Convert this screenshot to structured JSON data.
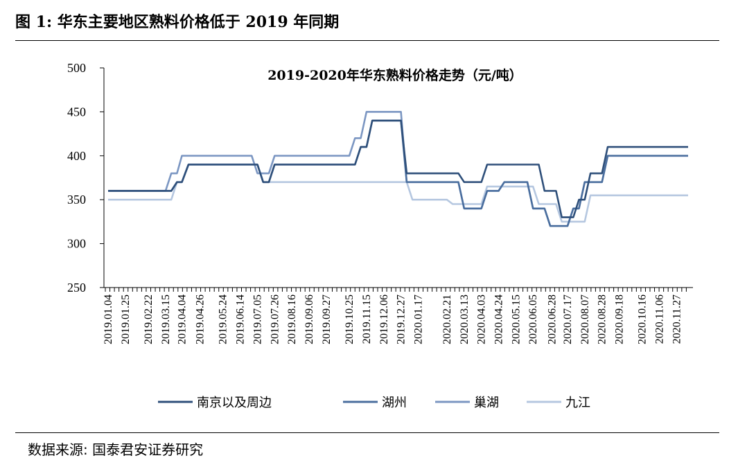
{
  "figure": {
    "title": "图 1: 华东主要地区熟料价格低于 2019 年同期",
    "source": "数据来源: 国泰君安证券研究"
  },
  "chart_data": {
    "type": "line",
    "title": "2019-2020年华东熟料价格走势（元/吨）",
    "xlabel": "",
    "ylabel": "",
    "ylim": [
      250,
      500
    ],
    "yticks": [
      250,
      300,
      350,
      400,
      450,
      500
    ],
    "grid": false,
    "legend_position": "bottom",
    "x_tick_labels": [
      "2019.01.04",
      "2019.01.25",
      "2019.02.22",
      "2019.03.15",
      "2019.04.04",
      "2019.04.26",
      "2019.05.24",
      "2019.06.14",
      "2019.07.05",
      "2019.07.26",
      "2019.08.16",
      "2019.09.06",
      "2019.09.27",
      "2019.10.25",
      "2019.11.15",
      "2019.12.06",
      "2019.12.27",
      "2020.01.17",
      "2020.02.21",
      "2020.03.13",
      "2020.04.03",
      "2020.04.24",
      "2020.05.15",
      "2020.06.05",
      "2020.06.28",
      "2020.07.17",
      "2020.08.07",
      "2020.08.28",
      "2020.09.18",
      "2020.10.16",
      "2020.11.06",
      "2020.11.27"
    ],
    "x_range": [
      "2019.01.04",
      "2020.12.11"
    ],
    "series": [
      {
        "name": "南京以及周边",
        "color": "#2e4f7a",
        "points": [
          [
            "2019.01.04",
            360
          ],
          [
            "2019.03.22",
            360
          ],
          [
            "2019.03.29",
            370
          ],
          [
            "2019.04.04",
            370
          ],
          [
            "2019.04.12",
            390
          ],
          [
            "2019.07.05",
            390
          ],
          [
            "2019.07.12",
            370
          ],
          [
            "2019.07.19",
            370
          ],
          [
            "2019.07.26",
            390
          ],
          [
            "2019.11.01",
            390
          ],
          [
            "2019.11.08",
            410
          ],
          [
            "2019.11.15",
            410
          ],
          [
            "2019.11.22",
            440
          ],
          [
            "2019.12.27",
            440
          ],
          [
            "2020.01.03",
            380
          ],
          [
            "2020.03.06",
            380
          ],
          [
            "2020.03.13",
            370
          ],
          [
            "2020.04.03",
            370
          ],
          [
            "2020.04.10",
            390
          ],
          [
            "2020.06.12",
            390
          ],
          [
            "2020.06.19",
            360
          ],
          [
            "2020.07.03",
            360
          ],
          [
            "2020.07.10",
            330
          ],
          [
            "2020.07.24",
            330
          ],
          [
            "2020.07.31",
            350
          ],
          [
            "2020.08.07",
            350
          ],
          [
            "2020.08.14",
            380
          ],
          [
            "2020.08.28",
            380
          ],
          [
            "2020.09.04",
            410
          ],
          [
            "2020.12.11",
            410
          ]
        ]
      },
      {
        "name": "湖州",
        "color": "#4a6e9e",
        "points": [
          [
            "2019.01.04",
            360
          ],
          [
            "2019.03.22",
            360
          ],
          [
            "2019.03.29",
            370
          ],
          [
            "2019.04.04",
            370
          ],
          [
            "2019.04.12",
            390
          ],
          [
            "2019.07.05",
            390
          ],
          [
            "2019.07.12",
            370
          ],
          [
            "2019.07.19",
            370
          ],
          [
            "2019.07.26",
            390
          ],
          [
            "2019.11.01",
            390
          ],
          [
            "2019.11.08",
            410
          ],
          [
            "2019.11.15",
            410
          ],
          [
            "2019.11.22",
            440
          ],
          [
            "2019.12.27",
            440
          ],
          [
            "2020.01.03",
            370
          ],
          [
            "2020.03.06",
            370
          ],
          [
            "2020.03.13",
            340
          ],
          [
            "2020.04.03",
            340
          ],
          [
            "2020.04.10",
            360
          ],
          [
            "2020.04.24",
            360
          ],
          [
            "2020.05.01",
            370
          ],
          [
            "2020.05.29",
            370
          ],
          [
            "2020.06.05",
            340
          ],
          [
            "2020.06.19",
            340
          ],
          [
            "2020.06.26",
            320
          ],
          [
            "2020.07.17",
            320
          ],
          [
            "2020.07.24",
            340
          ],
          [
            "2020.07.31",
            340
          ],
          [
            "2020.08.07",
            370
          ],
          [
            "2020.08.28",
            370
          ],
          [
            "2020.09.04",
            400
          ],
          [
            "2020.12.11",
            400
          ]
        ]
      },
      {
        "name": "巢湖",
        "color": "#7b96c2",
        "points": [
          [
            "2019.01.04",
            360
          ],
          [
            "2019.03.15",
            360
          ],
          [
            "2019.03.22",
            380
          ],
          [
            "2019.03.29",
            380
          ],
          [
            "2019.04.04",
            400
          ],
          [
            "2019.06.28",
            400
          ],
          [
            "2019.07.05",
            380
          ],
          [
            "2019.07.19",
            380
          ],
          [
            "2019.07.26",
            400
          ],
          [
            "2019.10.25",
            400
          ],
          [
            "2019.11.01",
            420
          ],
          [
            "2019.11.08",
            420
          ],
          [
            "2019.11.15",
            450
          ],
          [
            "2019.12.27",
            450
          ],
          [
            "2020.01.03",
            370
          ],
          [
            "2020.03.06",
            370
          ],
          [
            "2020.03.13",
            340
          ],
          [
            "2020.04.03",
            340
          ],
          [
            "2020.04.10",
            360
          ],
          [
            "2020.04.24",
            360
          ],
          [
            "2020.05.01",
            370
          ],
          [
            "2020.05.29",
            370
          ],
          [
            "2020.06.05",
            340
          ],
          [
            "2020.06.19",
            340
          ],
          [
            "2020.06.26",
            320
          ],
          [
            "2020.07.17",
            320
          ],
          [
            "2020.07.24",
            340
          ],
          [
            "2020.07.31",
            340
          ],
          [
            "2020.08.07",
            370
          ],
          [
            "2020.08.28",
            370
          ],
          [
            "2020.09.04",
            400
          ],
          [
            "2020.12.11",
            400
          ]
        ]
      },
      {
        "name": "九江",
        "color": "#b5c7e0",
        "points": [
          [
            "2019.01.04",
            350
          ],
          [
            "2019.03.22",
            350
          ],
          [
            "2019.03.29",
            370
          ],
          [
            "2019.04.04",
            370
          ],
          [
            "2019.04.12",
            390
          ],
          [
            "2019.07.05",
            390
          ],
          [
            "2019.07.12",
            370
          ],
          [
            "2020.01.03",
            370
          ],
          [
            "2020.01.10",
            350
          ],
          [
            "2020.02.21",
            350
          ],
          [
            "2020.02.28",
            345
          ],
          [
            "2020.04.03",
            345
          ],
          [
            "2020.04.10",
            365
          ],
          [
            "2020.06.05",
            365
          ],
          [
            "2020.06.12",
            345
          ],
          [
            "2020.07.03",
            345
          ],
          [
            "2020.07.10",
            325
          ],
          [
            "2020.08.07",
            325
          ],
          [
            "2020.08.14",
            355
          ],
          [
            "2020.12.11",
            355
          ]
        ]
      }
    ]
  }
}
